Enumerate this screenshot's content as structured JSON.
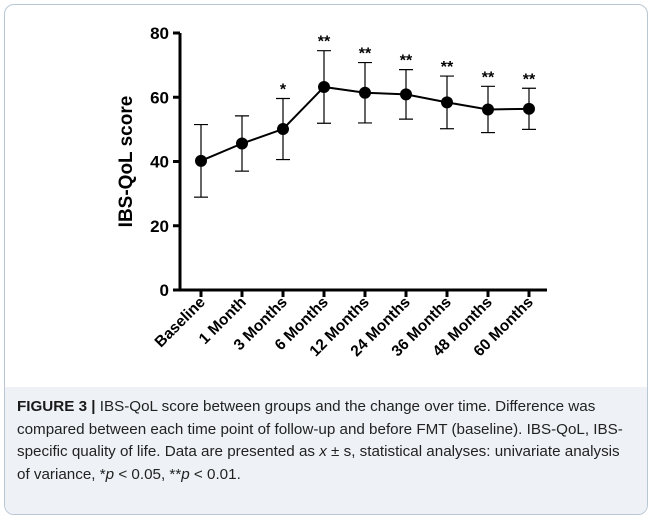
{
  "chart_data": {
    "type": "line",
    "title": "",
    "xlabel": "",
    "ylabel": "IBS-QoL score",
    "ylim": [
      0,
      80
    ],
    "yticks": [
      0,
      20,
      40,
      60,
      80
    ],
    "categories": [
      "Baseline",
      "1 Month",
      "3 Months",
      "6 Months",
      "12 Months",
      "24 Months",
      "36 Months",
      "48 Months",
      "60 Months"
    ],
    "series": [
      {
        "values": [
          40.2,
          45.6,
          50.1,
          63.2,
          61.4,
          60.9,
          58.4,
          56.2,
          56.4
        ],
        "error_sd": [
          11.3,
          8.6,
          9.5,
          11.3,
          9.4,
          7.7,
          8.2,
          7.2,
          6.4
        ]
      }
    ],
    "annotations": [
      "",
      "",
      "*",
      "**",
      "**",
      "**",
      "**",
      "**",
      "**"
    ],
    "grid": false,
    "line_color": "#000000",
    "marker": "filled-circle"
  },
  "caption": {
    "label": "FIGURE 3 |",
    "text_part1": " IBS-QoL score between groups and the change over time. Difference was compared between each time point of follow-up and before FMT (baseline). IBS-QoL, IBS-specific quality of life. Data are presented as ",
    "x_symbol": "x",
    "text_part2": " ± s, statistical analyses: univariate analysis of variance, ",
    "star1": "*",
    "p_symbol1": "p",
    "text_part3": " < 0.05, ",
    "star2": "**",
    "p_symbol2": "p",
    "text_part4": " < 0.01."
  }
}
